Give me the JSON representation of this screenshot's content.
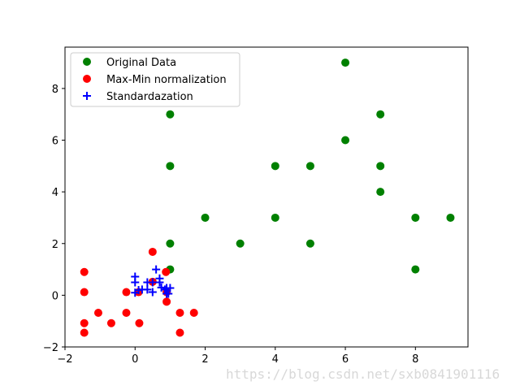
{
  "chart_data": {
    "type": "scatter",
    "title": "",
    "xlabel": "",
    "ylabel": "",
    "xlim": [
      -2.0,
      9.5
    ],
    "ylim": [
      -2.0,
      9.6
    ],
    "x_ticks": [
      -2,
      0,
      2,
      4,
      6,
      8
    ],
    "y_ticks": [
      -2,
      0,
      2,
      4,
      6,
      8
    ],
    "grid": false,
    "legend_position": "top-left",
    "series": [
      {
        "name": "Original Data",
        "marker": "circle",
        "color": "#008000",
        "points": [
          [
            1,
            7
          ],
          [
            1,
            5
          ],
          [
            1,
            2
          ],
          [
            1,
            1
          ],
          [
            2,
            3
          ],
          [
            3,
            2
          ],
          [
            4,
            5
          ],
          [
            4,
            3
          ],
          [
            5,
            5
          ],
          [
            5,
            2
          ],
          [
            6,
            9
          ],
          [
            6,
            6
          ],
          [
            7,
            7
          ],
          [
            7,
            5
          ],
          [
            7,
            4
          ],
          [
            8,
            3
          ],
          [
            8,
            1
          ],
          [
            9,
            3
          ]
        ]
      },
      {
        "name": "Max-Min normalization",
        "marker": "circle",
        "color": "#ff0000",
        "points": [
          [
            -1.45,
            0.9
          ],
          [
            -1.45,
            0.12
          ],
          [
            -1.45,
            -1.08
          ],
          [
            -1.45,
            -1.45
          ],
          [
            -1.05,
            -0.68
          ],
          [
            -0.68,
            -1.08
          ],
          [
            -0.25,
            0.12
          ],
          [
            -0.25,
            -0.68
          ],
          [
            0.1,
            0.12
          ],
          [
            0.12,
            -1.08
          ],
          [
            0.5,
            1.68
          ],
          [
            0.5,
            0.52
          ],
          [
            0.88,
            0.9
          ],
          [
            0.9,
            0.12
          ],
          [
            0.9,
            -0.25
          ],
          [
            1.28,
            -0.68
          ],
          [
            1.28,
            -1.45
          ],
          [
            1.68,
            -0.68
          ]
        ]
      },
      {
        "name": "Standardazation",
        "marker": "plus",
        "color": "#0000ff",
        "points": [
          [
            0.0,
            0.72
          ],
          [
            0.0,
            0.5
          ],
          [
            0.0,
            0.1
          ],
          [
            0.1,
            0.2
          ],
          [
            0.2,
            0.22
          ],
          [
            0.35,
            0.5
          ],
          [
            0.35,
            0.22
          ],
          [
            0.5,
            0.5
          ],
          [
            0.5,
            0.12
          ],
          [
            0.6,
            1.0
          ],
          [
            0.7,
            0.65
          ],
          [
            0.7,
            0.5
          ],
          [
            0.75,
            0.3
          ],
          [
            0.85,
            0.22
          ],
          [
            0.9,
            0.28
          ],
          [
            0.9,
            0.06
          ],
          [
            0.95,
            0.06
          ],
          [
            1.0,
            0.28
          ]
        ]
      }
    ]
  },
  "watermark": "https://blog.csdn.net/sxb0841901116"
}
